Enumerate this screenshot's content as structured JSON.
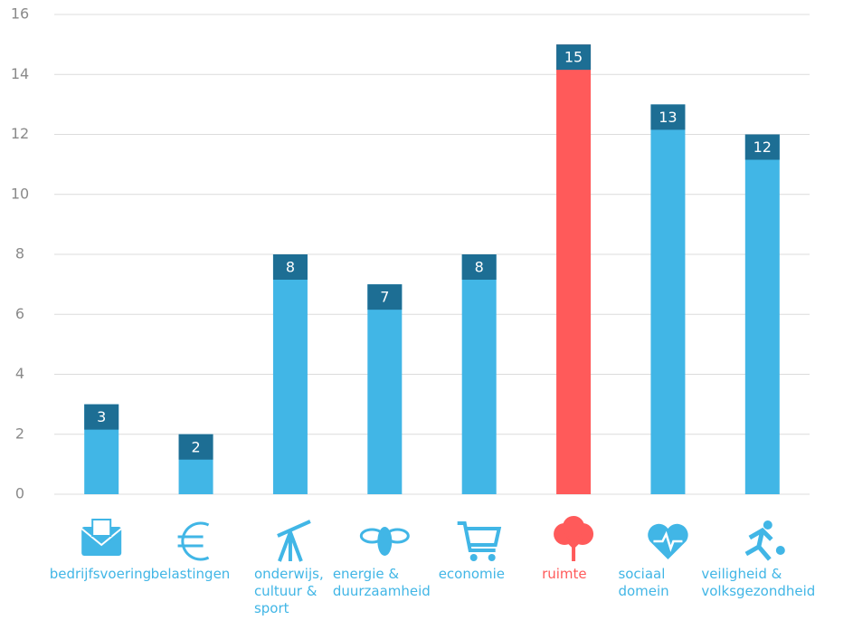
{
  "chart_data": {
    "type": "bar",
    "categories": [
      "bedrijfsvoering",
      "belastingen",
      "onderwijs, cultuur & sport",
      "energie & duurzaamheid",
      "economie",
      "ruimte",
      "sociaal domein",
      "veiligheid & volksgezondheid"
    ],
    "values": [
      3,
      2,
      8,
      7,
      8,
      15,
      13,
      12
    ],
    "colors": [
      "#41b6e6",
      "#41b6e6",
      "#41b6e6",
      "#41b6e6",
      "#41b6e6",
      "#ff5a5a",
      "#41b6e6",
      "#41b6e6"
    ],
    "label_box_color": "#1d6e94",
    "ylim": [
      0,
      16
    ],
    "yticks": [
      0,
      2,
      4,
      6,
      8,
      10,
      12,
      14,
      16
    ],
    "grid": true
  }
}
